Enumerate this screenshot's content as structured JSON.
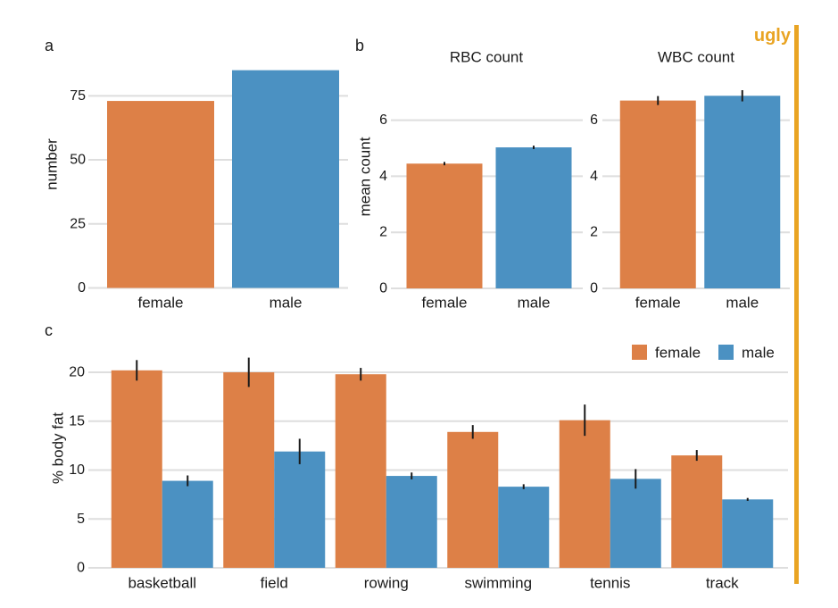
{
  "annotation": {
    "style_label": "ugly",
    "accent_color": "#E9A423"
  },
  "panel_labels": {
    "a": "a",
    "b": "b",
    "c": "c"
  },
  "colors": {
    "female": "#DD8047",
    "male": "#4B91C2",
    "gridline": "#DEDEDE",
    "text": "#1A1A1A",
    "error_bar": "#1A1A1A"
  },
  "chart_data": [
    {
      "id": "a",
      "type": "bar",
      "title": "",
      "categories": [
        "female",
        "male"
      ],
      "values": [
        73,
        85
      ],
      "bar_color_keys": [
        "female",
        "male"
      ],
      "ylabel": "number",
      "xlabel": "",
      "yticks": [
        0,
        25,
        50,
        75
      ],
      "ylim": [
        0,
        87
      ],
      "grid": true,
      "legend_position": "none"
    },
    {
      "id": "rbc",
      "type": "bar",
      "title": "RBC count",
      "categories": [
        "female",
        "male"
      ],
      "values": [
        4.45,
        5.03
      ],
      "errors": [
        0.06,
        0.06
      ],
      "bar_color_keys": [
        "female",
        "male"
      ],
      "ylabel": "mean count",
      "xlabel": "",
      "yticks": [
        0,
        2,
        4,
        6
      ],
      "ylim": [
        0,
        7.4
      ],
      "grid": true,
      "legend_position": "none"
    },
    {
      "id": "wbc",
      "type": "bar",
      "title": "WBC count",
      "categories": [
        "female",
        "male"
      ],
      "values": [
        6.7,
        6.87
      ],
      "errors": [
        0.16,
        0.2
      ],
      "bar_color_keys": [
        "female",
        "male"
      ],
      "ylabel": "",
      "xlabel": "",
      "yticks": [
        0,
        2,
        4,
        6
      ],
      "ylim": [
        0,
        7.4
      ],
      "grid": true,
      "legend_position": "none"
    },
    {
      "id": "bodyfat",
      "type": "bar",
      "title": "",
      "categories": [
        "basketball",
        "field",
        "rowing",
        "swimming",
        "tennis",
        "track"
      ],
      "series": [
        {
          "name": "female",
          "color_key": "female",
          "values": [
            20.2,
            20.0,
            19.8,
            13.9,
            15.1,
            11.5
          ],
          "errors": [
            1.05,
            1.5,
            0.65,
            0.7,
            1.6,
            0.55
          ]
        },
        {
          "name": "male",
          "color_key": "male",
          "values": [
            8.9,
            11.9,
            9.4,
            8.3,
            9.1,
            7.0
          ],
          "errors": [
            0.55,
            1.3,
            0.35,
            0.25,
            1.0,
            0.15
          ]
        }
      ],
      "ylabel": "% body fat",
      "xlabel": "",
      "yticks": [
        0,
        5,
        10,
        15,
        20
      ],
      "ylim": [
        0,
        22
      ],
      "grid": true,
      "legend_position": "top-right",
      "legend": [
        "female",
        "male"
      ]
    }
  ]
}
